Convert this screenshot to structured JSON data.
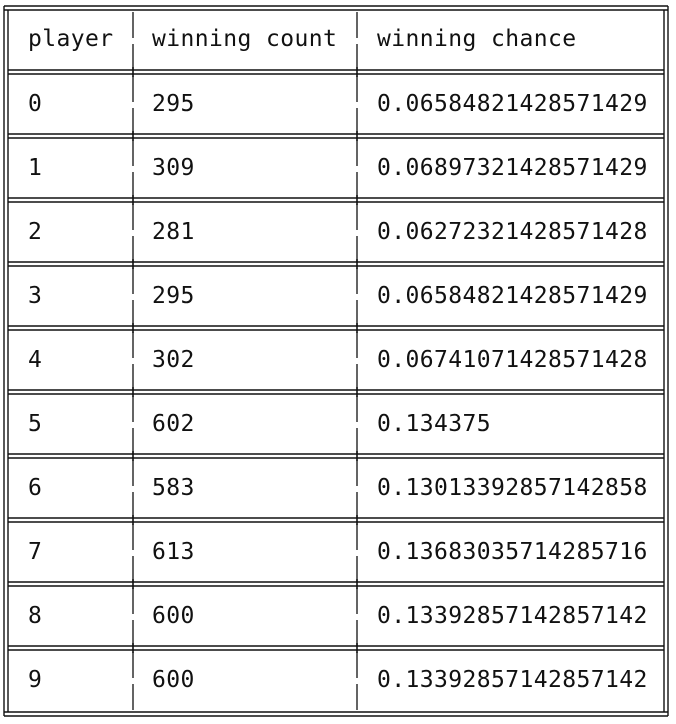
{
  "table": {
    "headers": [
      "player",
      "winning count",
      "winning chance"
    ],
    "rows": [
      [
        "0",
        "295",
        "0.06584821428571429"
      ],
      [
        "1",
        "309",
        "0.06897321428571429"
      ],
      [
        "2",
        "281",
        "0.06272321428571428"
      ],
      [
        "3",
        "295",
        "0.06584821428571429"
      ],
      [
        "4",
        "302",
        "0.06741071428571428"
      ],
      [
        "5",
        "602",
        "0.134375"
      ],
      [
        "6",
        "583",
        "0.13013392857142858"
      ],
      [
        "7",
        "613",
        "0.13683035714285716"
      ],
      [
        "8",
        "600",
        "0.13392857142857142"
      ],
      [
        "9",
        "600",
        "0.13392857142857142"
      ]
    ]
  },
  "colors": {
    "text": "#111111",
    "rule": "#111111",
    "background": "#ffffff"
  }
}
